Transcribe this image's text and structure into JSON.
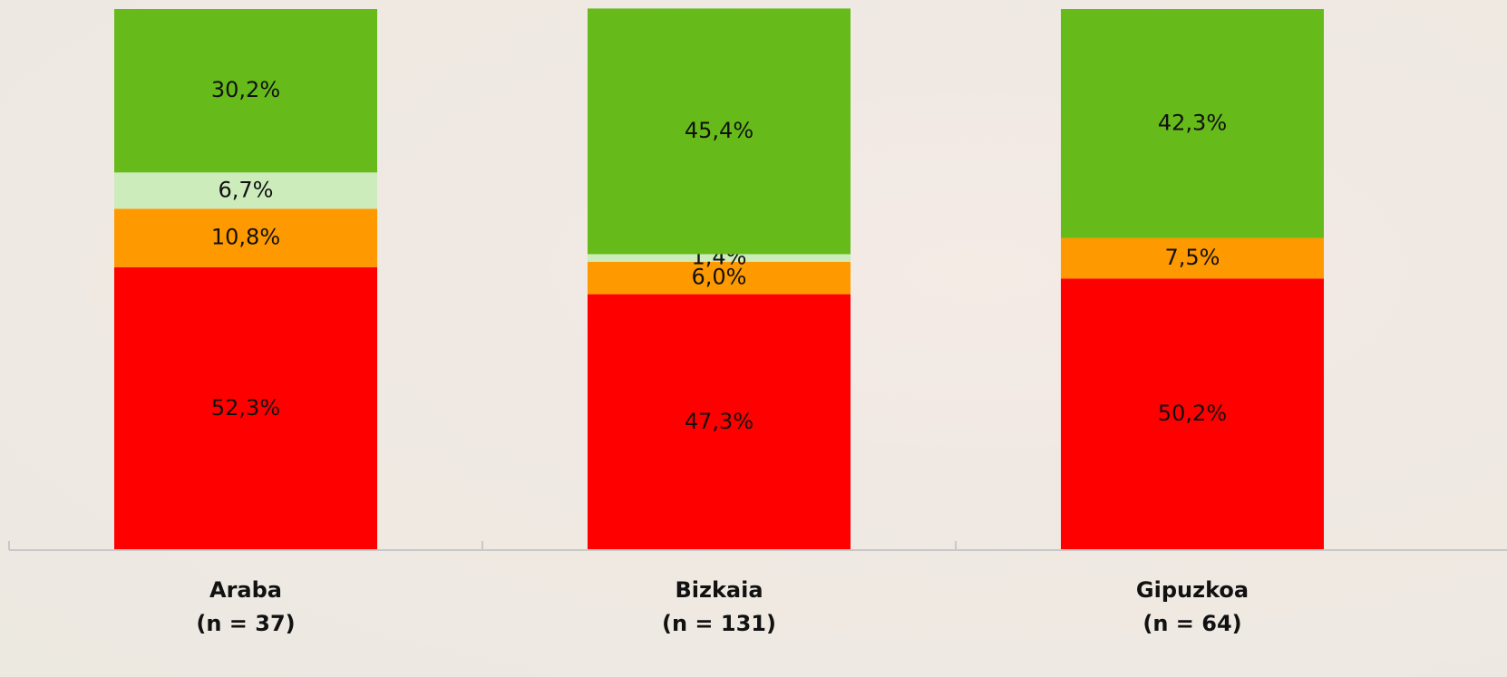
{
  "chart_data": {
    "type": "stacked_bar",
    "categories": [
      [
        "Araba",
        "(n = 37)"
      ],
      [
        "Bizkaia",
        "(n = 131)"
      ],
      [
        "Gipuzkoa",
        "(n = 64)"
      ]
    ],
    "series": [
      {
        "color": "#ff0000",
        "values": [
          52.3,
          47.3,
          50.2
        ],
        "value_labels": [
          "52,3%",
          "47,3%",
          "50,2%"
        ]
      },
      {
        "color": "#ff9900",
        "values": [
          10.8,
          6.0,
          7.5
        ],
        "value_labels": [
          "10,8%",
          "6,0%",
          "7,5%"
        ]
      },
      {
        "color": "#ccecbc",
        "values": [
          6.7,
          1.4,
          null
        ],
        "value_labels": [
          "6,7%",
          "1,4%",
          null
        ]
      },
      {
        "color": "#66bb1a",
        "values": [
          30.2,
          45.4,
          42.3
        ],
        "value_labels": [
          "30,2%",
          "45,4%",
          "42,3%"
        ]
      }
    ],
    "ylim": [
      0,
      100
    ]
  }
}
